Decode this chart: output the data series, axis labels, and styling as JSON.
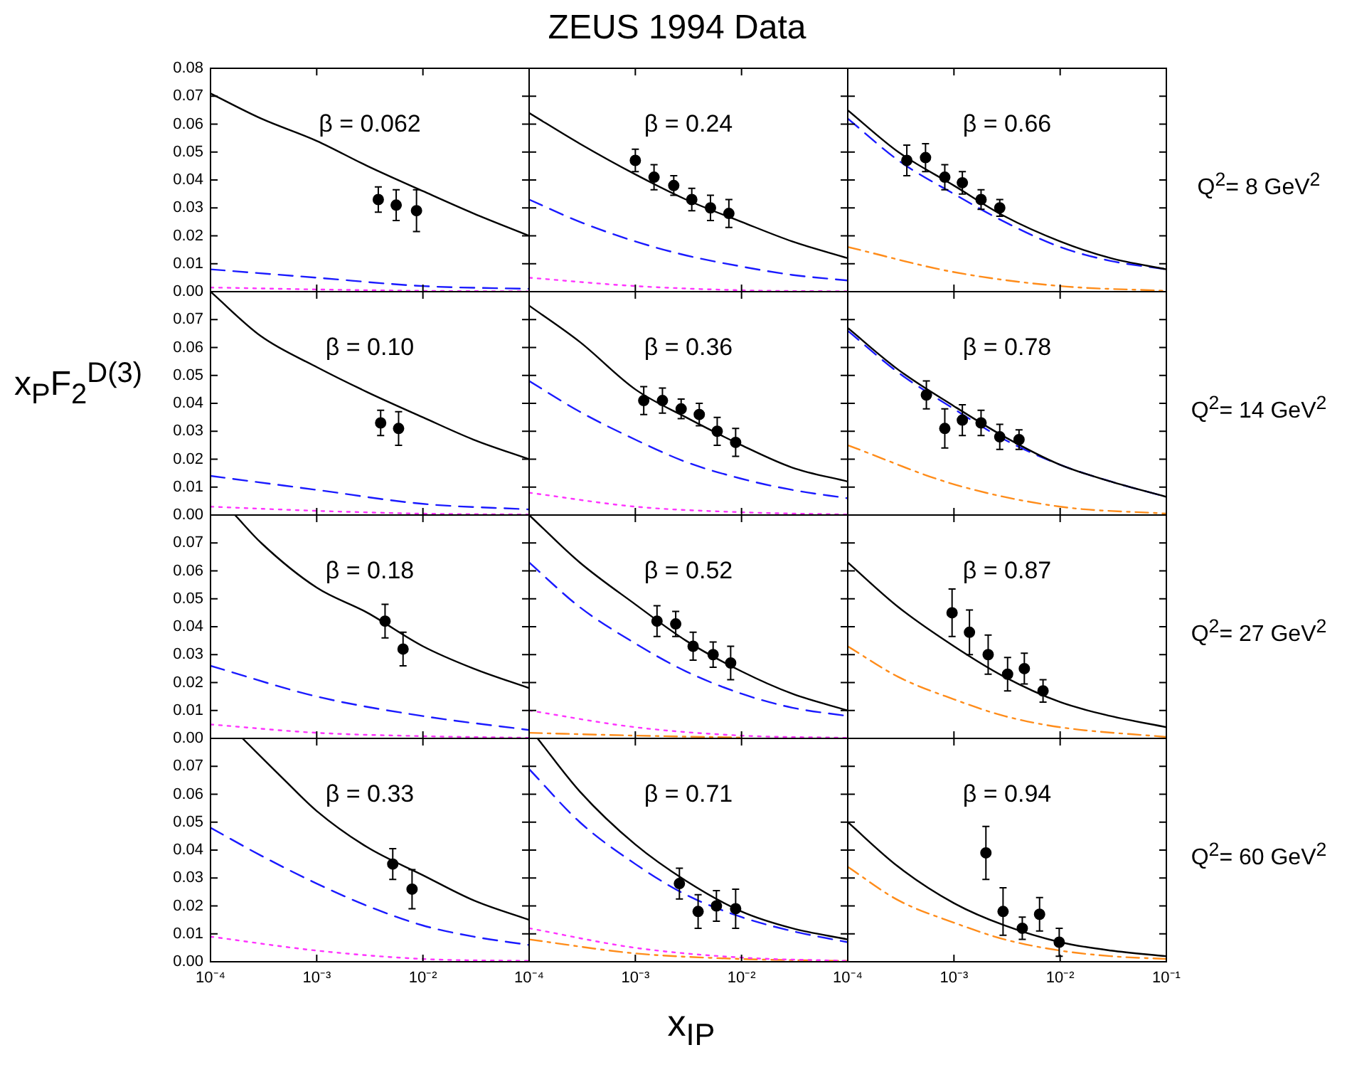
{
  "chart_data": [
    {
      "type": "line",
      "annotations": [
        "β = 0.062"
      ],
      "log": "x",
      "tick_labels": "y",
      "xlim": [
        0.0001,
        0.1
      ],
      "ylim": [
        0,
        0.08
      ],
      "xticks": [
        {
          "value": 0.0001,
          "label": null
        },
        {
          "value": 0.001,
          "label": null
        },
        {
          "value": 0.01,
          "label": null
        },
        {
          "value": 0.1,
          "label": null
        }
      ],
      "yticks": [
        {
          "value": 0,
          "label": "0.00"
        },
        {
          "value": 0.01,
          "label": "0.01"
        },
        {
          "value": 0.02,
          "label": "0.02"
        },
        {
          "value": 0.03,
          "label": "0.03"
        },
        {
          "value": 0.04,
          "label": "0.04"
        },
        {
          "value": 0.05,
          "label": "0.05"
        },
        {
          "value": 0.06,
          "label": "0.06"
        },
        {
          "value": 0.07,
          "label": "0.07"
        },
        {
          "value": 0.08,
          "label": "0.08"
        }
      ],
      "series": [
        {
          "type": "scatter",
          "color": "#000000",
          "marker": "circle",
          "x": [
            0.0038,
            0.0056,
            0.0087
          ],
          "values": [
            0.033,
            0.031,
            0.029
          ],
          "errors": [
            0.0045,
            0.0055,
            0.0075
          ]
        },
        {
          "type": "line",
          "color": "#000000",
          "line_style": "solid",
          "x": [
            0.0001,
            0.0003,
            0.001,
            0.003,
            0.01,
            0.03,
            0.1
          ],
          "values": [
            0.071,
            0.062,
            0.054,
            0.045,
            0.036,
            0.028,
            0.02
          ]
        },
        {
          "type": "line",
          "color": "#1a1aff",
          "line_style": "dashed",
          "x": [
            0.0001,
            0.001,
            0.01,
            0.1
          ],
          "values": [
            0.008,
            0.005,
            0.002,
            0.001
          ]
        },
        {
          "type": "line",
          "color": "#ff33ff",
          "line_style": "dotted",
          "x": [
            0.0001,
            0.001,
            0.01,
            0.1
          ],
          "values": [
            0.0015,
            0.0008,
            0.0003,
            0.0001
          ]
        }
      ]
    },
    {
      "type": "line",
      "title": "ZEUS 1994 Data",
      "annotations": [
        "β = 0.24"
      ],
      "log": "x",
      "tick_labels": false,
      "xlim": [
        0.0001,
        0.1
      ],
      "ylim": [
        0,
        0.08
      ],
      "xticks": [
        {
          "value": 0.0001,
          "label": null
        },
        {
          "value": 0.001,
          "label": null
        },
        {
          "value": 0.01,
          "label": null
        },
        {
          "value": 0.1,
          "label": null
        }
      ],
      "yticks": [
        {
          "value": 0,
          "label": null
        },
        {
          "value": 0.01,
          "label": null
        },
        {
          "value": 0.02,
          "label": null
        },
        {
          "value": 0.03,
          "label": null
        },
        {
          "value": 0.04,
          "label": null
        },
        {
          "value": 0.05,
          "label": null
        },
        {
          "value": 0.06,
          "label": null
        },
        {
          "value": 0.07,
          "label": null
        },
        {
          "value": 0.08,
          "label": null
        }
      ],
      "series": [
        {
          "type": "scatter",
          "color": "#000000",
          "marker": "circle",
          "x": [
            0.001,
            0.0015,
            0.0023,
            0.0034,
            0.0051,
            0.0076
          ],
          "values": [
            0.047,
            0.041,
            0.038,
            0.033,
            0.03,
            0.028
          ],
          "errors": [
            0.004,
            0.0045,
            0.0035,
            0.004,
            0.0045,
            0.005
          ]
        },
        {
          "type": "line",
          "color": "#000000",
          "line_style": "solid",
          "x": [
            0.0001,
            0.0003,
            0.001,
            0.003,
            0.01,
            0.03,
            0.1
          ],
          "values": [
            0.064,
            0.053,
            0.042,
            0.033,
            0.025,
            0.018,
            0.012
          ]
        },
        {
          "type": "line",
          "color": "#1a1aff",
          "line_style": "dashed",
          "x": [
            0.0001,
            0.0003,
            0.001,
            0.003,
            0.01,
            0.03,
            0.1
          ],
          "values": [
            0.033,
            0.025,
            0.018,
            0.013,
            0.009,
            0.006,
            0.004
          ]
        },
        {
          "type": "line",
          "color": "#ff33ff",
          "line_style": "dotted",
          "x": [
            0.0001,
            0.001,
            0.01,
            0.1
          ],
          "values": [
            0.005,
            0.002,
            0.0005,
            0.0001
          ]
        }
      ]
    },
    {
      "type": "line",
      "annotations": [
        "β = 0.66"
      ],
      "y2label": "Q$^{2}$= 8 GeV$^{2}$",
      "log": "x",
      "tick_labels": false,
      "xlim": [
        0.0001,
        0.1
      ],
      "ylim": [
        0,
        0.08
      ],
      "xticks": [
        {
          "value": 0.0001,
          "label": null
        },
        {
          "value": 0.001,
          "label": null
        },
        {
          "value": 0.01,
          "label": null
        },
        {
          "value": 0.1,
          "label": null
        }
      ],
      "yticks": [
        {
          "value": 0,
          "label": null
        },
        {
          "value": 0.01,
          "label": null
        },
        {
          "value": 0.02,
          "label": null
        },
        {
          "value": 0.03,
          "label": null
        },
        {
          "value": 0.04,
          "label": null
        },
        {
          "value": 0.05,
          "label": null
        },
        {
          "value": 0.06,
          "label": null
        },
        {
          "value": 0.07,
          "label": null
        },
        {
          "value": 0.08,
          "label": null
        }
      ],
      "series": [
        {
          "type": "scatter",
          "color": "#000000",
          "marker": "circle",
          "x": [
            0.00036,
            0.00054,
            0.00082,
            0.0012,
            0.0018,
            0.0027
          ],
          "values": [
            0.047,
            0.048,
            0.041,
            0.039,
            0.033,
            0.03
          ],
          "errors": [
            0.0055,
            0.005,
            0.0045,
            0.004,
            0.0035,
            0.003
          ]
        },
        {
          "type": "line",
          "color": "#000000",
          "line_style": "solid",
          "x": [
            0.0001,
            0.0003,
            0.001,
            0.003,
            0.01,
            0.03,
            0.1
          ],
          "values": [
            0.065,
            0.05,
            0.038,
            0.027,
            0.018,
            0.012,
            0.008
          ]
        },
        {
          "type": "line",
          "color": "#1a1aff",
          "line_style": "dashed",
          "x": [
            0.0001,
            0.0003,
            0.001,
            0.003,
            0.01,
            0.03,
            0.1
          ],
          "values": [
            0.062,
            0.047,
            0.035,
            0.025,
            0.016,
            0.011,
            0.008
          ]
        },
        {
          "type": "line",
          "color": "#ff8c1a",
          "line_style": "dashdot",
          "x": [
            0.0001,
            0.001,
            0.01,
            0.1
          ],
          "values": [
            0.016,
            0.007,
            0.002,
            0.0003
          ]
        }
      ]
    },
    {
      "type": "line",
      "annotations": [
        "β = 0.10"
      ],
      "ylabel": "x$_{P}$F$_{2}$$^{D(3)}$",
      "log": "x",
      "tick_labels": "y",
      "xlim": [
        0.0001,
        0.1
      ],
      "ylim": [
        0,
        0.08
      ],
      "xticks": [
        {
          "value": 0.0001,
          "label": null
        },
        {
          "value": 0.001,
          "label": null
        },
        {
          "value": 0.01,
          "label": null
        },
        {
          "value": 0.1,
          "label": null
        }
      ],
      "yticks": [
        {
          "value": 0,
          "label": "0.00"
        },
        {
          "value": 0.01,
          "label": "0.01"
        },
        {
          "value": 0.02,
          "label": "0.02"
        },
        {
          "value": 0.03,
          "label": "0.03"
        },
        {
          "value": 0.04,
          "label": "0.04"
        },
        {
          "value": 0.05,
          "label": "0.05"
        },
        {
          "value": 0.06,
          "label": "0.06"
        },
        {
          "value": 0.07,
          "label": "0.07"
        },
        {
          "value": 0.08,
          "label": null
        }
      ],
      "series": [
        {
          "type": "scatter",
          "color": "#000000",
          "marker": "circle",
          "x": [
            0.004,
            0.0059
          ],
          "values": [
            0.033,
            0.031
          ],
          "errors": [
            0.0045,
            0.006
          ]
        },
        {
          "type": "line",
          "color": "#000000",
          "line_style": "solid",
          "x": [
            0.0001,
            0.0003,
            0.001,
            0.003,
            0.01,
            0.03,
            0.1
          ],
          "values": [
            0.08,
            0.064,
            0.053,
            0.044,
            0.035,
            0.027,
            0.02
          ]
        },
        {
          "type": "line",
          "color": "#1a1aff",
          "line_style": "dashed",
          "x": [
            0.0001,
            0.001,
            0.01,
            0.1
          ],
          "values": [
            0.014,
            0.009,
            0.004,
            0.002
          ]
        },
        {
          "type": "line",
          "color": "#ff33ff",
          "line_style": "dotted",
          "x": [
            0.0001,
            0.001,
            0.01,
            0.1
          ],
          "values": [
            0.003,
            0.0015,
            0.0005,
            0.0002
          ]
        }
      ]
    },
    {
      "type": "line",
      "annotations": [
        "β = 0.36"
      ],
      "log": "x",
      "tick_labels": false,
      "xlim": [
        0.0001,
        0.1
      ],
      "ylim": [
        0,
        0.08
      ],
      "xticks": [
        {
          "value": 0.0001,
          "label": null
        },
        {
          "value": 0.001,
          "label": null
        },
        {
          "value": 0.01,
          "label": null
        },
        {
          "value": 0.1,
          "label": null
        }
      ],
      "yticks": [
        {
          "value": 0,
          "label": null
        },
        {
          "value": 0.01,
          "label": null
        },
        {
          "value": 0.02,
          "label": null
        },
        {
          "value": 0.03,
          "label": null
        },
        {
          "value": 0.04,
          "label": null
        },
        {
          "value": 0.05,
          "label": null
        },
        {
          "value": 0.06,
          "label": null
        },
        {
          "value": 0.07,
          "label": null
        },
        {
          "value": 0.08,
          "label": null
        }
      ],
      "series": [
        {
          "type": "scatter",
          "color": "#000000",
          "marker": "circle",
          "x": [
            0.0012,
            0.0018,
            0.0027,
            0.004,
            0.0059,
            0.0088
          ],
          "values": [
            0.041,
            0.041,
            0.038,
            0.036,
            0.03,
            0.026
          ],
          "errors": [
            0.005,
            0.0045,
            0.0035,
            0.004,
            0.005,
            0.005
          ]
        },
        {
          "type": "line",
          "color": "#000000",
          "line_style": "solid",
          "x": [
            0.0001,
            0.0003,
            0.001,
            0.003,
            0.01,
            0.03,
            0.1
          ],
          "values": [
            0.075,
            0.062,
            0.045,
            0.035,
            0.025,
            0.017,
            0.012
          ]
        },
        {
          "type": "line",
          "color": "#1a1aff",
          "line_style": "dashed",
          "x": [
            0.0001,
            0.0003,
            0.001,
            0.003,
            0.01,
            0.03,
            0.1
          ],
          "values": [
            0.048,
            0.037,
            0.027,
            0.019,
            0.013,
            0.009,
            0.006
          ]
        },
        {
          "type": "line",
          "color": "#ff33ff",
          "line_style": "dotted",
          "x": [
            0.0001,
            0.001,
            0.01,
            0.1
          ],
          "values": [
            0.008,
            0.003,
            0.001,
            0.0002
          ]
        }
      ]
    },
    {
      "type": "line",
      "annotations": [
        "β = 0.78"
      ],
      "y2label": "Q$^{2}$= 14 GeV$^{2}$",
      "log": "x",
      "tick_labels": false,
      "xlim": [
        0.0001,
        0.1
      ],
      "ylim": [
        0,
        0.08
      ],
      "xticks": [
        {
          "value": 0.0001,
          "label": null
        },
        {
          "value": 0.001,
          "label": null
        },
        {
          "value": 0.01,
          "label": null
        },
        {
          "value": 0.1,
          "label": null
        }
      ],
      "yticks": [
        {
          "value": 0,
          "label": null
        },
        {
          "value": 0.01,
          "label": null
        },
        {
          "value": 0.02,
          "label": null
        },
        {
          "value": 0.03,
          "label": null
        },
        {
          "value": 0.04,
          "label": null
        },
        {
          "value": 0.05,
          "label": null
        },
        {
          "value": 0.06,
          "label": null
        },
        {
          "value": 0.07,
          "label": null
        },
        {
          "value": 0.08,
          "label": null
        }
      ],
      "series": [
        {
          "type": "scatter",
          "color": "#000000",
          "marker": "circle",
          "x": [
            0.00055,
            0.00082,
            0.0012,
            0.0018,
            0.0027,
            0.0041
          ],
          "values": [
            0.043,
            0.031,
            0.034,
            0.033,
            0.028,
            0.027
          ],
          "errors": [
            0.005,
            0.007,
            0.0055,
            0.0045,
            0.0045,
            0.0035
          ]
        },
        {
          "type": "line",
          "color": "#000000",
          "line_style": "solid",
          "x": [
            0.0001,
            0.0003,
            0.001,
            0.003,
            0.01,
            0.03,
            0.1
          ],
          "values": [
            0.067,
            0.052,
            0.039,
            0.028,
            0.018,
            0.012,
            0.0065
          ]
        },
        {
          "type": "line",
          "color": "#1a1aff",
          "line_style": "dashed",
          "x": [
            0.0001,
            0.0003,
            0.001,
            0.003,
            0.01,
            0.03,
            0.1
          ],
          "values": [
            0.066,
            0.051,
            0.038,
            0.027,
            0.018,
            0.012,
            0.0065
          ]
        },
        {
          "type": "line",
          "color": "#ff8c1a",
          "line_style": "dashdot",
          "x": [
            0.0001,
            0.001,
            0.01,
            0.1
          ],
          "values": [
            0.025,
            0.011,
            0.003,
            0.0005
          ]
        }
      ]
    },
    {
      "type": "line",
      "annotations": [
        "β = 0.18"
      ],
      "log": "x",
      "tick_labels": "y",
      "xlim": [
        0.0001,
        0.1
      ],
      "ylim": [
        0,
        0.08
      ],
      "xticks": [
        {
          "value": 0.0001,
          "label": null
        },
        {
          "value": 0.001,
          "label": null
        },
        {
          "value": 0.01,
          "label": null
        },
        {
          "value": 0.1,
          "label": null
        }
      ],
      "yticks": [
        {
          "value": 0,
          "label": "0.00"
        },
        {
          "value": 0.01,
          "label": "0.01"
        },
        {
          "value": 0.02,
          "label": "0.02"
        },
        {
          "value": 0.03,
          "label": "0.03"
        },
        {
          "value": 0.04,
          "label": "0.04"
        },
        {
          "value": 0.05,
          "label": "0.05"
        },
        {
          "value": 0.06,
          "label": "0.06"
        },
        {
          "value": 0.07,
          "label": "0.07"
        },
        {
          "value": 0.08,
          "label": null
        }
      ],
      "series": [
        {
          "type": "scatter",
          "color": "#000000",
          "marker": "circle",
          "x": [
            0.0044,
            0.0065
          ],
          "values": [
            0.042,
            0.032
          ],
          "errors": [
            0.006,
            0.006
          ]
        },
        {
          "type": "line",
          "color": "#000000",
          "line_style": "solid",
          "x": [
            0.00017,
            0.0003,
            0.001,
            0.003,
            0.01,
            0.03,
            0.1
          ],
          "values": [
            0.08,
            0.07,
            0.054,
            0.045,
            0.033,
            0.025,
            0.018
          ]
        },
        {
          "type": "line",
          "color": "#1a1aff",
          "line_style": "dashed",
          "x": [
            0.0001,
            0.001,
            0.01,
            0.1
          ],
          "values": [
            0.026,
            0.015,
            0.008,
            0.003
          ]
        },
        {
          "type": "line",
          "color": "#ff33ff",
          "line_style": "dotted",
          "x": [
            0.0001,
            0.001,
            0.01,
            0.1
          ],
          "values": [
            0.005,
            0.002,
            0.0008,
            0.0002
          ]
        }
      ]
    },
    {
      "type": "line",
      "annotations": [
        "β = 0.52"
      ],
      "log": "x",
      "tick_labels": false,
      "xlim": [
        0.0001,
        0.1
      ],
      "ylim": [
        0,
        0.08
      ],
      "xticks": [
        {
          "value": 0.0001,
          "label": null
        },
        {
          "value": 0.001,
          "label": null
        },
        {
          "value": 0.01,
          "label": null
        },
        {
          "value": 0.1,
          "label": null
        }
      ],
      "yticks": [
        {
          "value": 0,
          "label": null
        },
        {
          "value": 0.01,
          "label": null
        },
        {
          "value": 0.02,
          "label": null
        },
        {
          "value": 0.03,
          "label": null
        },
        {
          "value": 0.04,
          "label": null
        },
        {
          "value": 0.05,
          "label": null
        },
        {
          "value": 0.06,
          "label": null
        },
        {
          "value": 0.07,
          "label": null
        },
        {
          "value": 0.08,
          "label": null
        }
      ],
      "series": [
        {
          "type": "scatter",
          "color": "#000000",
          "marker": "circle",
          "x": [
            0.0016,
            0.0024,
            0.0035,
            0.0054,
            0.0079
          ],
          "values": [
            0.042,
            0.041,
            0.033,
            0.03,
            0.027
          ],
          "errors": [
            0.0055,
            0.0045,
            0.005,
            0.0045,
            0.006
          ]
        },
        {
          "type": "line",
          "color": "#000000",
          "line_style": "solid",
          "x": [
            0.0001,
            0.0003,
            0.001,
            0.003,
            0.01,
            0.03,
            0.1
          ],
          "values": [
            0.08,
            0.063,
            0.048,
            0.035,
            0.024,
            0.016,
            0.01
          ]
        },
        {
          "type": "line",
          "color": "#1a1aff",
          "line_style": "dashed",
          "x": [
            0.0001,
            0.0003,
            0.001,
            0.003,
            0.01,
            0.03,
            0.1
          ],
          "values": [
            0.063,
            0.047,
            0.034,
            0.024,
            0.016,
            0.011,
            0.008
          ]
        },
        {
          "type": "line",
          "color": "#ff33ff",
          "line_style": "dotted",
          "x": [
            0.0001,
            0.001,
            0.01,
            0.1
          ],
          "values": [
            0.01,
            0.004,
            0.001,
            0.0002
          ]
        },
        {
          "type": "line",
          "color": "#ff8c1a",
          "line_style": "dashdot",
          "x": [
            0.0001,
            0.001,
            0.01
          ],
          "values": [
            0.002,
            0.001,
            0.0003
          ]
        }
      ]
    },
    {
      "type": "line",
      "annotations": [
        "β = 0.87"
      ],
      "y2label": "Q$^{2}$= 27 GeV$^{2}$",
      "log": "x",
      "tick_labels": false,
      "xlim": [
        0.0001,
        0.1
      ],
      "ylim": [
        0,
        0.08
      ],
      "xticks": [
        {
          "value": 0.0001,
          "label": null
        },
        {
          "value": 0.001,
          "label": null
        },
        {
          "value": 0.01,
          "label": null
        },
        {
          "value": 0.1,
          "label": null
        }
      ],
      "yticks": [
        {
          "value": 0,
          "label": null
        },
        {
          "value": 0.01,
          "label": null
        },
        {
          "value": 0.02,
          "label": null
        },
        {
          "value": 0.03,
          "label": null
        },
        {
          "value": 0.04,
          "label": null
        },
        {
          "value": 0.05,
          "label": null
        },
        {
          "value": 0.06,
          "label": null
        },
        {
          "value": 0.07,
          "label": null
        },
        {
          "value": 0.08,
          "label": null
        }
      ],
      "series": [
        {
          "type": "scatter",
          "color": "#000000",
          "marker": "circle",
          "x": [
            0.00096,
            0.0014,
            0.0021,
            0.0032,
            0.0046,
            0.0069
          ],
          "values": [
            0.045,
            0.038,
            0.03,
            0.023,
            0.025,
            0.017
          ],
          "errors": [
            0.0085,
            0.008,
            0.007,
            0.006,
            0.0055,
            0.004
          ]
        },
        {
          "type": "line",
          "color": "#000000",
          "line_style": "solid",
          "x": [
            0.0001,
            0.0003,
            0.001,
            0.003,
            0.01,
            0.03,
            0.1
          ],
          "values": [
            0.063,
            0.047,
            0.033,
            0.022,
            0.013,
            0.008,
            0.004
          ]
        },
        {
          "type": "line",
          "color": "#ff8c1a",
          "line_style": "dashdot",
          "x": [
            0.0001,
            0.0003,
            0.001,
            0.003,
            0.01,
            0.1
          ],
          "values": [
            0.033,
            0.022,
            0.014,
            0.008,
            0.004,
            0.0005
          ]
        }
      ]
    },
    {
      "type": "line",
      "annotations": [
        "β = 0.33"
      ],
      "log": "x",
      "xlim": [
        0.0001,
        0.1
      ],
      "ylim": [
        0,
        0.08
      ],
      "xticks": [
        {
          "value": 0.0001,
          "label": "10⁻⁴"
        },
        {
          "value": 0.001,
          "label": "10⁻³"
        },
        {
          "value": 0.01,
          "label": "10⁻²"
        },
        {
          "value": 0.1,
          "label": null
        }
      ],
      "yticks": [
        {
          "value": 0,
          "label": "0.00"
        },
        {
          "value": 0.01,
          "label": "0.01"
        },
        {
          "value": 0.02,
          "label": "0.02"
        },
        {
          "value": 0.03,
          "label": "0.03"
        },
        {
          "value": 0.04,
          "label": "0.04"
        },
        {
          "value": 0.05,
          "label": "0.05"
        },
        {
          "value": 0.06,
          "label": "0.06"
        },
        {
          "value": 0.07,
          "label": "0.07"
        },
        {
          "value": 0.08,
          "label": null
        }
      ],
      "series": [
        {
          "type": "scatter",
          "color": "#000000",
          "marker": "circle",
          "x": [
            0.0052,
            0.0079
          ],
          "values": [
            0.035,
            0.026
          ],
          "errors": [
            0.0055,
            0.007
          ]
        },
        {
          "type": "line",
          "color": "#000000",
          "line_style": "solid",
          "x": [
            0.0002,
            0.0005,
            0.001,
            0.003,
            0.01,
            0.03,
            0.1
          ],
          "values": [
            0.08,
            0.065,
            0.054,
            0.041,
            0.031,
            0.022,
            0.015
          ]
        },
        {
          "type": "line",
          "color": "#1a1aff",
          "line_style": "dashed",
          "x": [
            0.0001,
            0.0003,
            0.001,
            0.003,
            0.01,
            0.03,
            0.1
          ],
          "values": [
            0.048,
            0.038,
            0.028,
            0.02,
            0.013,
            0.009,
            0.006
          ]
        },
        {
          "type": "line",
          "color": "#ff33ff",
          "line_style": "dotted",
          "x": [
            0.0001,
            0.001,
            0.01,
            0.1
          ],
          "values": [
            0.009,
            0.004,
            0.001,
            0.0003
          ]
        }
      ]
    },
    {
      "type": "line",
      "annotations": [
        "β = 0.71"
      ],
      "xlabel": "x$_{IP}$",
      "log": "x",
      "tick_labels": "x",
      "xlim": [
        0.0001,
        0.1
      ],
      "ylim": [
        0,
        0.08
      ],
      "xticks": [
        {
          "value": 0.0001,
          "label": "10⁻⁴"
        },
        {
          "value": 0.001,
          "label": "10⁻³"
        },
        {
          "value": 0.01,
          "label": "10⁻²"
        },
        {
          "value": 0.1,
          "label": null
        }
      ],
      "yticks": [
        {
          "value": 0,
          "label": null
        },
        {
          "value": 0.01,
          "label": null
        },
        {
          "value": 0.02,
          "label": null
        },
        {
          "value": 0.03,
          "label": null
        },
        {
          "value": 0.04,
          "label": null
        },
        {
          "value": 0.05,
          "label": null
        },
        {
          "value": 0.06,
          "label": null
        },
        {
          "value": 0.07,
          "label": null
        },
        {
          "value": 0.08,
          "label": null
        }
      ],
      "series": [
        {
          "type": "scatter",
          "color": "#000000",
          "marker": "circle",
          "x": [
            0.0026,
            0.0039,
            0.0058,
            0.0088
          ],
          "values": [
            0.028,
            0.018,
            0.02,
            0.019
          ],
          "errors": [
            0.0055,
            0.006,
            0.0055,
            0.007
          ]
        },
        {
          "type": "line",
          "color": "#000000",
          "line_style": "solid",
          "x": [
            0.00012,
            0.0003,
            0.001,
            0.003,
            0.01,
            0.03,
            0.1
          ],
          "values": [
            0.08,
            0.061,
            0.042,
            0.029,
            0.018,
            0.012,
            0.008
          ]
        },
        {
          "type": "line",
          "color": "#1a1aff",
          "line_style": "dashed",
          "x": [
            0.0001,
            0.0003,
            0.001,
            0.003,
            0.01,
            0.03,
            0.1
          ],
          "values": [
            0.069,
            0.05,
            0.035,
            0.024,
            0.016,
            0.011,
            0.007
          ]
        },
        {
          "type": "line",
          "color": "#ff33ff",
          "line_style": "dotted",
          "x": [
            0.0001,
            0.001,
            0.01,
            0.1
          ],
          "values": [
            0.012,
            0.005,
            0.0015,
            0.0003
          ]
        },
        {
          "type": "line",
          "color": "#ff8c1a",
          "line_style": "dashdot",
          "x": [
            0.0001,
            0.001,
            0.01,
            0.1
          ],
          "values": [
            0.008,
            0.003,
            0.001,
            0.0003
          ]
        }
      ]
    },
    {
      "type": "line",
      "annotations": [
        "β = 0.94"
      ],
      "y2label": "Q$^{2}$= 60 GeV$^{2}$",
      "log": "x",
      "tick_labels": "x",
      "xlim": [
        0.0001,
        0.1
      ],
      "ylim": [
        0,
        0.08
      ],
      "xticks": [
        {
          "value": 0.0001,
          "label": "10⁻⁴"
        },
        {
          "value": 0.001,
          "label": "10⁻³"
        },
        {
          "value": 0.01,
          "label": "10⁻²"
        },
        {
          "value": 0.1,
          "label": "10⁻¹"
        }
      ],
      "yticks": [
        {
          "value": 0,
          "label": null
        },
        {
          "value": 0.01,
          "label": null
        },
        {
          "value": 0.02,
          "label": null
        },
        {
          "value": 0.03,
          "label": null
        },
        {
          "value": 0.04,
          "label": null
        },
        {
          "value": 0.05,
          "label": null
        },
        {
          "value": 0.06,
          "label": null
        },
        {
          "value": 0.07,
          "label": null
        },
        {
          "value": 0.08,
          "label": null
        }
      ],
      "series": [
        {
          "type": "scatter",
          "color": "#000000",
          "marker": "circle",
          "x": [
            0.002,
            0.0029,
            0.0044,
            0.0064,
            0.0098
          ],
          "values": [
            0.039,
            0.018,
            0.012,
            0.017,
            0.007
          ],
          "errors": [
            0.0095,
            0.0085,
            0.004,
            0.006,
            0.005
          ]
        },
        {
          "type": "line",
          "color": "#000000",
          "line_style": "solid",
          "x": [
            0.0001,
            0.0003,
            0.001,
            0.003,
            0.01,
            0.03,
            0.1
          ],
          "values": [
            0.05,
            0.034,
            0.021,
            0.013,
            0.007,
            0.004,
            0.002
          ]
        },
        {
          "type": "line",
          "color": "#ff8c1a",
          "line_style": "dashdot",
          "x": [
            0.0001,
            0.0003,
            0.001,
            0.003,
            0.01,
            0.03,
            0.1
          ],
          "values": [
            0.034,
            0.022,
            0.014,
            0.008,
            0.004,
            0.002,
            0.001
          ]
        }
      ]
    }
  ]
}
